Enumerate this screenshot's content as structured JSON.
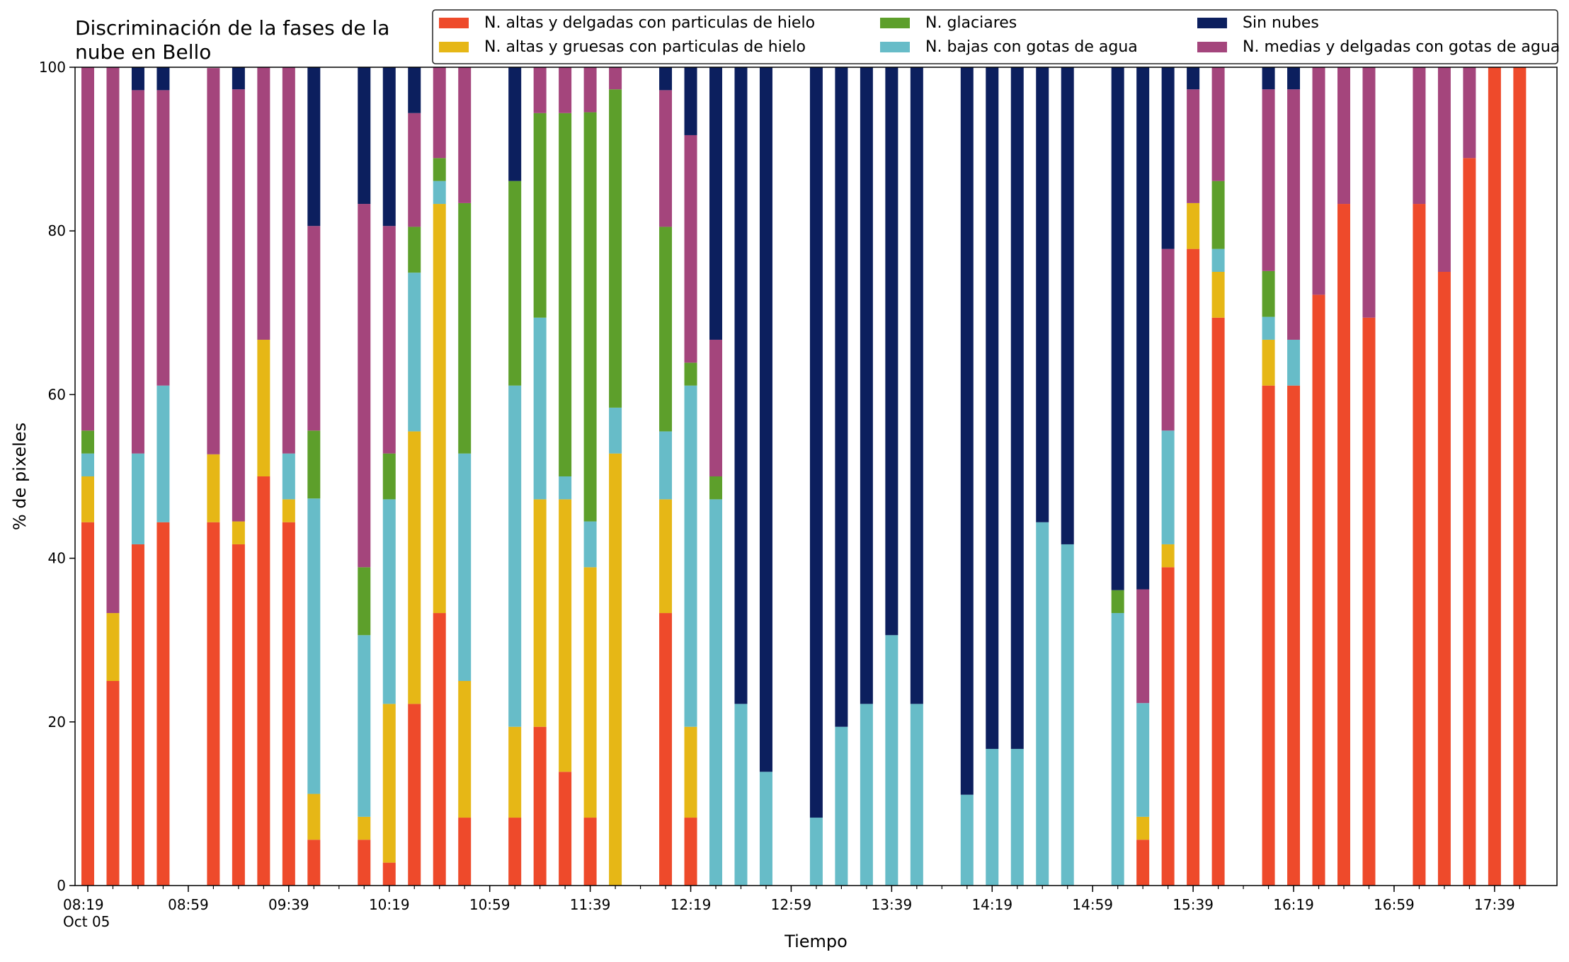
{
  "chart_data": {
    "type": "bar",
    "stacked": true,
    "title_lines": [
      "Discriminación de la fases de la",
      "nube en Bello"
    ],
    "xlabel": "Tiempo",
    "ylabel": "% de pixeles",
    "ylim": [
      0,
      100
    ],
    "yticks": [
      0,
      20,
      40,
      60,
      80,
      100
    ],
    "grid": false,
    "legend_position": "top-right",
    "x_start": "08:19",
    "x_step_minutes": 10,
    "x_slot_count": 58,
    "x_ticks": [
      {
        "slot": 0,
        "label": "08:19",
        "sublabel": "Oct 05"
      },
      {
        "slot": 4,
        "label": "08:59"
      },
      {
        "slot": 8,
        "label": "09:39"
      },
      {
        "slot": 12,
        "label": "10:19"
      },
      {
        "slot": 16,
        "label": "10:59"
      },
      {
        "slot": 20,
        "label": "11:39"
      },
      {
        "slot": 24,
        "label": "12:19"
      },
      {
        "slot": 28,
        "label": "12:59"
      },
      {
        "slot": 32,
        "label": "13:39"
      },
      {
        "slot": 36,
        "label": "14:19"
      },
      {
        "slot": 40,
        "label": "14:59"
      },
      {
        "slot": 44,
        "label": "15:39"
      },
      {
        "slot": 48,
        "label": "16:19"
      },
      {
        "slot": 52,
        "label": "16:59"
      },
      {
        "slot": 56,
        "label": "17:39"
      }
    ],
    "legend_order": [
      0,
      1,
      3,
      2,
      5,
      4
    ],
    "series": [
      {
        "name": "N. altas y delgadas con particulas de hielo",
        "color": "#ee4a2b"
      },
      {
        "name": "N. altas y gruesas con particulas de hielo",
        "color": "#e6b716"
      },
      {
        "name": "N. bajas con gotas de agua",
        "color": "#67bcc8"
      },
      {
        "name": "N. glaciares",
        "color": "#5d9f2b"
      },
      {
        "name": "N. medias y delgadas con gotas de agua",
        "color": "#a4457c"
      },
      {
        "name": "Sin nubes",
        "color": "#0c1f5e"
      }
    ],
    "bars": [
      {
        "time": "08:19",
        "values": [
          44.4,
          5.6,
          2.8,
          2.8,
          44.4,
          0
        ]
      },
      {
        "time": "08:29",
        "values": [
          25,
          8.3,
          0,
          0,
          66.7,
          0
        ]
      },
      {
        "time": "08:39",
        "values": [
          41.7,
          0,
          11.1,
          0,
          44.4,
          2.8
        ]
      },
      {
        "time": "08:49",
        "values": [
          44.4,
          0,
          16.7,
          0,
          36.1,
          2.8
        ]
      },
      {
        "time": "09:09",
        "values": [
          44.4,
          8.3,
          0,
          0,
          47.2,
          0
        ]
      },
      {
        "time": "09:19",
        "values": [
          41.7,
          2.8,
          0,
          0,
          52.8,
          2.8
        ]
      },
      {
        "time": "09:29",
        "values": [
          50,
          16.7,
          0,
          0,
          33.3,
          0
        ]
      },
      {
        "time": "09:39",
        "values": [
          44.4,
          2.8,
          5.6,
          0,
          47.2,
          0
        ]
      },
      {
        "time": "09:49",
        "values": [
          5.6,
          5.6,
          36.1,
          8.3,
          25,
          19.4
        ]
      },
      {
        "time": "10:09",
        "values": [
          5.6,
          2.8,
          22.2,
          8.3,
          44.4,
          16.7
        ]
      },
      {
        "time": "10:19",
        "values": [
          2.8,
          19.4,
          25,
          5.6,
          27.8,
          19.4
        ]
      },
      {
        "time": "10:29",
        "values": [
          22.2,
          33.3,
          19.4,
          5.6,
          13.9,
          5.6
        ]
      },
      {
        "time": "10:39",
        "values": [
          33.3,
          50,
          2.8,
          2.8,
          11.1,
          0
        ]
      },
      {
        "time": "10:49",
        "values": [
          8.3,
          16.7,
          27.8,
          30.6,
          16.7,
          0
        ]
      },
      {
        "time": "11:09",
        "values": [
          8.3,
          11.1,
          41.7,
          25,
          0,
          13.9
        ]
      },
      {
        "time": "11:19",
        "values": [
          19.4,
          27.8,
          22.2,
          25,
          5.6,
          0
        ]
      },
      {
        "time": "11:29",
        "values": [
          13.9,
          33.3,
          2.8,
          44.4,
          5.6,
          0
        ]
      },
      {
        "time": "11:39",
        "values": [
          8.3,
          30.6,
          5.6,
          50,
          5.6,
          0
        ]
      },
      {
        "time": "11:49",
        "values": [
          0,
          52.8,
          5.6,
          38.9,
          2.8,
          0
        ]
      },
      {
        "time": "12:09",
        "values": [
          33.3,
          13.9,
          8.3,
          25,
          16.7,
          2.8
        ]
      },
      {
        "time": "12:19",
        "values": [
          8.3,
          11.1,
          41.7,
          2.8,
          27.8,
          8.3
        ]
      },
      {
        "time": "12:29",
        "values": [
          0,
          0,
          47.2,
          2.8,
          16.7,
          33.3
        ]
      },
      {
        "time": "12:39",
        "values": [
          0,
          0,
          22.2,
          0,
          0,
          77.8
        ]
      },
      {
        "time": "12:49",
        "values": [
          0,
          0,
          13.9,
          0,
          0,
          86.1
        ]
      },
      {
        "time": "13:09",
        "values": [
          0,
          0,
          8.3,
          0,
          0,
          91.7
        ]
      },
      {
        "time": "13:19",
        "values": [
          0,
          0,
          19.4,
          0,
          0,
          80.6
        ]
      },
      {
        "time": "13:29",
        "values": [
          0,
          0,
          22.2,
          0,
          0,
          77.8
        ]
      },
      {
        "time": "13:39",
        "values": [
          0,
          0,
          30.6,
          0,
          0,
          69.4
        ]
      },
      {
        "time": "13:49",
        "values": [
          0,
          0,
          22.2,
          0,
          0,
          77.8
        ]
      },
      {
        "time": "14:09",
        "values": [
          0,
          0,
          11.1,
          0,
          0,
          88.9
        ]
      },
      {
        "time": "14:19",
        "values": [
          0,
          0,
          16.7,
          0,
          0,
          83.3
        ]
      },
      {
        "time": "14:29",
        "values": [
          0,
          0,
          16.7,
          0,
          0,
          83.3
        ]
      },
      {
        "time": "14:39",
        "values": [
          0,
          0,
          44.4,
          0,
          0,
          55.6
        ]
      },
      {
        "time": "14:49",
        "values": [
          0,
          0,
          41.7,
          0,
          0,
          58.3
        ]
      },
      {
        "time": "15:09",
        "values": [
          0,
          0,
          33.3,
          2.8,
          0,
          63.9
        ]
      },
      {
        "time": "15:19",
        "values": [
          5.6,
          2.8,
          13.9,
          0,
          13.9,
          63.9
        ]
      },
      {
        "time": "15:29",
        "values": [
          38.9,
          2.8,
          13.9,
          0,
          22.2,
          22.2
        ]
      },
      {
        "time": "15:39",
        "values": [
          77.8,
          5.6,
          0,
          0,
          13.9,
          2.8
        ]
      },
      {
        "time": "15:49",
        "values": [
          69.4,
          5.6,
          2.8,
          8.3,
          13.9,
          0
        ]
      },
      {
        "time": "16:09",
        "values": [
          61.1,
          5.6,
          2.8,
          5.6,
          22.2,
          2.8
        ]
      },
      {
        "time": "16:19",
        "values": [
          61.1,
          0,
          5.6,
          0,
          30.6,
          2.8
        ]
      },
      {
        "time": "16:29",
        "values": [
          72.2,
          0,
          0,
          0,
          27.8,
          0
        ]
      },
      {
        "time": "16:39",
        "values": [
          83.3,
          0,
          0,
          0,
          16.7,
          0
        ]
      },
      {
        "time": "16:49",
        "values": [
          69.4,
          0,
          0,
          0,
          30.6,
          0
        ]
      },
      {
        "time": "17:09",
        "values": [
          83.3,
          0,
          0,
          0,
          16.7,
          0
        ]
      },
      {
        "time": "17:19",
        "values": [
          75,
          0,
          0,
          0,
          25,
          0
        ]
      },
      {
        "time": "17:29",
        "values": [
          88.9,
          0,
          0,
          0,
          11.1,
          0
        ]
      },
      {
        "time": "17:39",
        "values": [
          100,
          0,
          0,
          0,
          0,
          0
        ]
      },
      {
        "time": "17:49",
        "values": [
          100,
          0,
          0,
          0,
          0,
          0
        ]
      }
    ]
  }
}
